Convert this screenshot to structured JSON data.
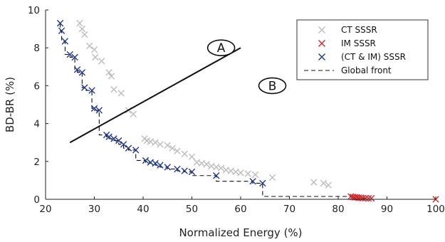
{
  "chart_data": {
    "type": "scatter",
    "xlabel": "Normalized Energy (%)",
    "ylabel": "BD-BR (%)",
    "xlim": [
      20,
      100
    ],
    "ylim": [
      0,
      10
    ],
    "x_ticks": [
      20,
      30,
      40,
      50,
      60,
      70,
      80,
      90,
      100
    ],
    "y_ticks": [
      0,
      2,
      4,
      6,
      8,
      10
    ],
    "grid": false,
    "legend_position": "top-right",
    "series": [
      {
        "name": "CT SSSR",
        "marker": "x",
        "color": "#bdbdbd",
        "points": [
          [
            27,
            9.3
          ],
          [
            27.5,
            9.0
          ],
          [
            28,
            8.7
          ],
          [
            29,
            8.1
          ],
          [
            30,
            7.9
          ],
          [
            30.2,
            7.5
          ],
          [
            31.5,
            7.3
          ],
          [
            33,
            6.7
          ],
          [
            33.5,
            6.5
          ],
          [
            34,
            5.8
          ],
          [
            35.5,
            5.6
          ],
          [
            37,
            4.7
          ],
          [
            38,
            4.5
          ],
          [
            40.3,
            3.2
          ],
          [
            40.8,
            3.1
          ],
          [
            41.5,
            3.05
          ],
          [
            42.5,
            3.0
          ],
          [
            43.5,
            2.9
          ],
          [
            45,
            2.85
          ],
          [
            46,
            2.7
          ],
          [
            47,
            2.55
          ],
          [
            48.5,
            2.4
          ],
          [
            50,
            2.25
          ],
          [
            51,
            1.95
          ],
          [
            52,
            1.9
          ],
          [
            53,
            1.85
          ],
          [
            54,
            1.75
          ],
          [
            55,
            1.7
          ],
          [
            56,
            1.65
          ],
          [
            57,
            1.55
          ],
          [
            58,
            1.5
          ],
          [
            59,
            1.45
          ],
          [
            60,
            1.4
          ],
          [
            61.5,
            1.35
          ],
          [
            63,
            1.3
          ],
          [
            66.5,
            1.15
          ],
          [
            75,
            0.9
          ],
          [
            77,
            0.85
          ],
          [
            78,
            0.75
          ]
        ]
      },
      {
        "name": "IM SSSR",
        "marker": "x",
        "color": "#d62728",
        "points": [
          [
            82.6,
            0.15
          ],
          [
            83.0,
            0.12
          ],
          [
            83.4,
            0.1
          ],
          [
            83.8,
            0.1
          ],
          [
            84.2,
            0.08
          ],
          [
            84.6,
            0.08
          ],
          [
            85.0,
            0.06
          ],
          [
            85.6,
            0.06
          ],
          [
            86.2,
            0.05
          ],
          [
            86.8,
            0.05
          ],
          [
            100,
            0.0
          ]
        ]
      },
      {
        "name": "(CT & IM) SSSR",
        "marker": "x",
        "color": "#1f3a93",
        "points": [
          [
            23,
            9.3
          ],
          [
            23.3,
            8.9
          ],
          [
            24,
            8.35
          ],
          [
            25,
            7.65
          ],
          [
            26,
            7.5
          ],
          [
            26.5,
            6.85
          ],
          [
            27.5,
            6.7
          ],
          [
            28,
            5.9
          ],
          [
            29.5,
            5.75
          ],
          [
            30,
            4.8
          ],
          [
            31,
            4.7
          ],
          [
            32.5,
            3.4
          ],
          [
            33,
            3.3
          ],
          [
            34,
            3.2
          ],
          [
            35,
            3.1
          ],
          [
            36,
            2.9
          ],
          [
            37,
            2.7
          ],
          [
            38.5,
            2.6
          ],
          [
            40.5,
            2.05
          ],
          [
            41.5,
            1.95
          ],
          [
            42.5,
            1.9
          ],
          [
            43.5,
            1.8
          ],
          [
            45,
            1.7
          ],
          [
            47,
            1.6
          ],
          [
            48.5,
            1.5
          ],
          [
            50,
            1.45
          ],
          [
            55,
            1.25
          ],
          [
            62.5,
            0.95
          ],
          [
            64.5,
            0.85
          ]
        ]
      },
      {
        "name": "Global front",
        "marker": "none",
        "line": "dashed",
        "color": "#111111",
        "points": [
          [
            23,
            9.3
          ],
          [
            23.3,
            8.9
          ],
          [
            24,
            8.35
          ],
          [
            25,
            7.65
          ],
          [
            26,
            7.5
          ],
          [
            26.5,
            6.85
          ],
          [
            27.5,
            6.7
          ],
          [
            28,
            5.9
          ],
          [
            29.5,
            5.75
          ],
          [
            30,
            4.8
          ],
          [
            31,
            4.7
          ],
          [
            32.5,
            3.4
          ],
          [
            33,
            3.3
          ],
          [
            34,
            3.2
          ],
          [
            35,
            3.1
          ],
          [
            36,
            2.9
          ],
          [
            37,
            2.7
          ],
          [
            38.5,
            2.6
          ],
          [
            40.5,
            2.05
          ],
          [
            41.5,
            1.95
          ],
          [
            42.5,
            1.9
          ],
          [
            43.5,
            1.8
          ],
          [
            45,
            1.7
          ],
          [
            47,
            1.6
          ],
          [
            48.5,
            1.5
          ],
          [
            50,
            1.45
          ],
          [
            55,
            1.25
          ],
          [
            62.5,
            0.95
          ],
          [
            64.5,
            0.85
          ],
          [
            82.6,
            0.15
          ],
          [
            83.0,
            0.12
          ],
          [
            83.4,
            0.1
          ],
          [
            84.2,
            0.08
          ],
          [
            85.0,
            0.06
          ],
          [
            86.2,
            0.05
          ],
          [
            100,
            0.0
          ]
        ]
      }
    ],
    "annotations": [
      {
        "text": "A",
        "x": 56,
        "y": 8.0,
        "shape": "ellipse"
      },
      {
        "text": "B",
        "x": 66.5,
        "y": 6.0,
        "shape": "ellipse"
      }
    ],
    "divider_line": [
      [
        25,
        3.0
      ],
      [
        60,
        8.0
      ]
    ]
  }
}
